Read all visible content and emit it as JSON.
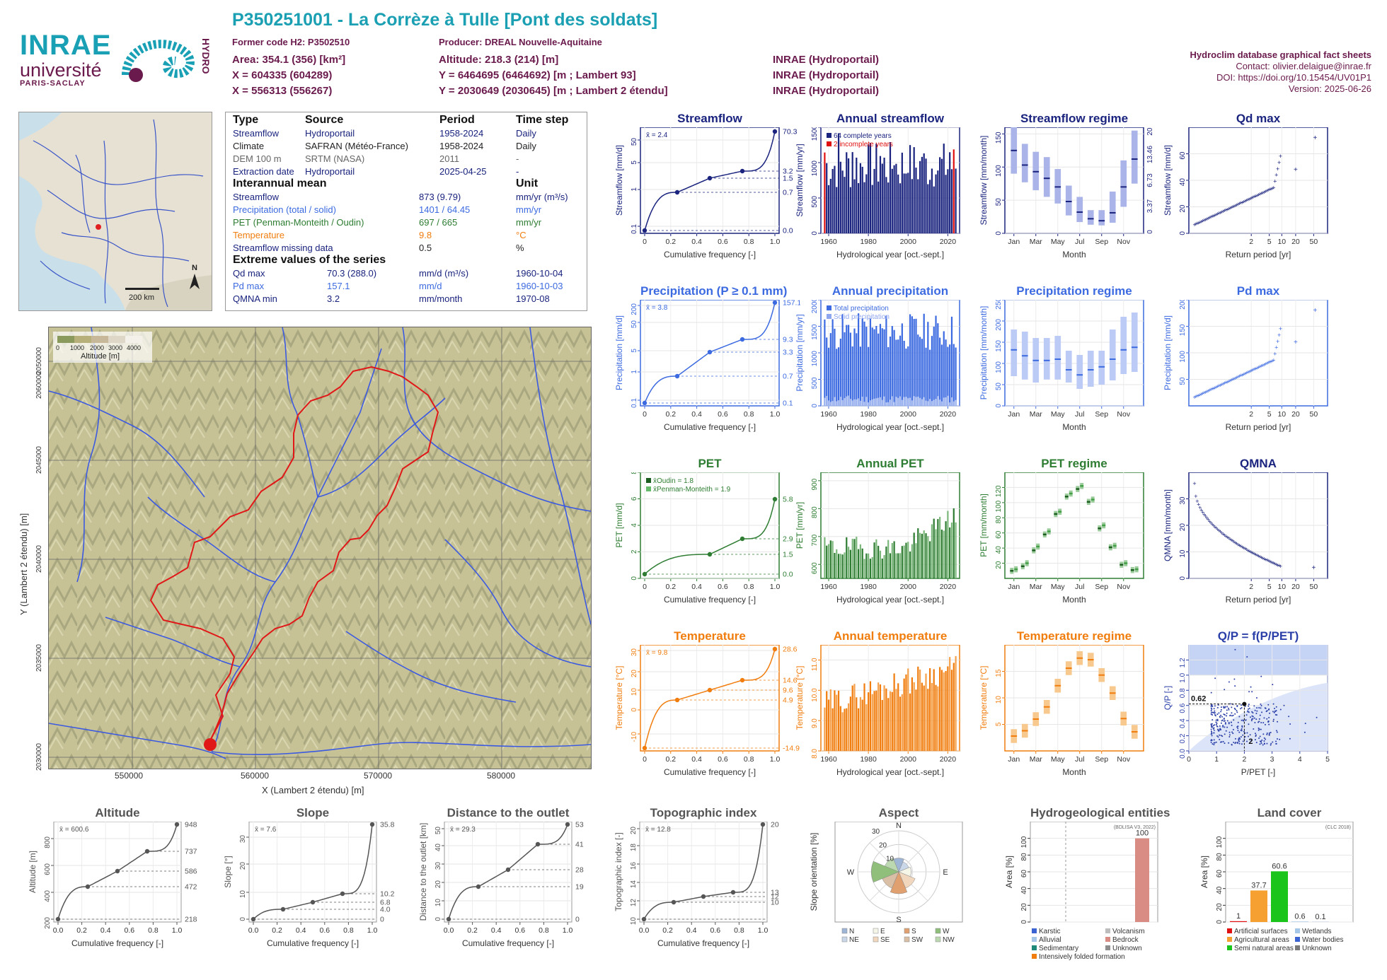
{
  "logos": {
    "inrae": "INRAE",
    "univ": "université",
    "ps": "PARIS-SACLAY",
    "hydro": "HYDRO"
  },
  "header": {
    "title": "P350251001 - La Corrèze à Tulle [Pont des soldats]",
    "former_code": "Former code H2: P3502510",
    "producer": "Producer: DREAL Nouvelle-Aquitaine",
    "area": "Area: 354.1 (356) [km²]",
    "x1": "X = 604335 (604289)",
    "x2": "X = 556313 (556267)",
    "altitude": "Altitude: 218.3 (214) [m]",
    "y1": "Y = 6464695 (6464692) [m ; Lambert 93]",
    "y2": "Y = 2030649 (2030645) [m ; Lambert 2 étendu]",
    "src1": "INRAE (Hydroportail)",
    "src2": "INRAE (Hydroportail)",
    "src3": "INRAE (Hydroportail)"
  },
  "credits": {
    "title": "Hydroclim database graphical fact sheets",
    "contact": "Contact: olivier.delaigue@inrae.fr",
    "doi": "DOI: https://doi.org/10.15454/UV01P1",
    "version": "Version: 2025-06-26"
  },
  "france_map": {
    "scale": "200 km",
    "north": "N"
  },
  "info": {
    "head": [
      "Type",
      "Source",
      "Period",
      "Time step"
    ],
    "rows": [
      [
        "Streamflow",
        "Hydroportail",
        "1958-2024",
        "Daily"
      ],
      [
        "Climate",
        "SAFRAN (Météo-France)",
        "1958-2024",
        "Daily"
      ],
      [
        "DEM 100 m",
        "SRTM (NASA)",
        "2011",
        "-"
      ],
      [
        "Extraction date",
        "Hydroportail",
        "2025-04-25",
        "-"
      ]
    ],
    "mean_head": "Interannual mean",
    "unit_head": "Unit",
    "mean_rows": [
      [
        "Streamflow",
        "873 (9.79)",
        "mm/yr (m³/s)"
      ],
      [
        "Precipitation (total / solid)",
        "1401 / 64.45",
        "mm/yr"
      ],
      [
        "PET (Penman-Monteith / Oudin)",
        "697 / 665",
        "mm/yr"
      ],
      [
        "Temperature",
        "9.8",
        "°C"
      ],
      [
        "Streamflow missing data",
        "0.5",
        "%"
      ]
    ],
    "ext_head": "Extreme values of the series",
    "ext_rows": [
      [
        "Qd max",
        "70.3 (288.0)",
        "mm/d (m³/s)",
        "1960-10-04"
      ],
      [
        "Pd max",
        "157.1",
        "mm/d",
        "1960-10-03"
      ],
      [
        "QMNA min",
        "3.2",
        "mm/month",
        "1970-08"
      ]
    ]
  },
  "basin_map": {
    "legend_title": "Altitude [m]",
    "legend_ticks": [
      "0",
      "1000",
      "2000",
      "3000",
      "4000"
    ],
    "x_ticks": [
      "550000",
      "560000",
      "570000",
      "580000"
    ],
    "y_ticks": [
      "2030000",
      "2035000",
      "2040000",
      "2045000",
      "2050000",
      "2055000",
      "2060000"
    ],
    "xlabel": "X (Lambert 2 étendu) [m]",
    "ylabel": "Y (Lambert 2 étendu) [m]"
  },
  "colors": {
    "flow": "#1a237e",
    "precip": "#3c6ae0",
    "pet": "#2e7d32",
    "temp": "#f07d0e",
    "qp": "#2b3fa8",
    "grey": "#555555"
  },
  "titles": {
    "streamflow": "Streamflow",
    "annual_streamflow": "Annual streamflow",
    "streamflow_regime": "Streamflow regime",
    "qd_max": "Qd  max",
    "precipitation": "Precipitation (P ≥ 0.1 mm)",
    "annual_precipitation": "Annual precipitation",
    "precipitation_regime": "Precipitation regime",
    "pd_max": "Pd  max",
    "pet": "PET",
    "annual_pet": "Annual PET",
    "pet_regime": "PET regime",
    "qmna": "QMNA",
    "temperature": "Temperature",
    "annual_temperature": "Annual temperature",
    "temperature_regime": "Temperature regime",
    "qp": "Q/P = f(P/PET)",
    "altitude": "Altitude",
    "slope": "Slope",
    "distance": "Distance to the outlet",
    "topo": "Topographic index",
    "aspect": "Aspect",
    "hydrogeo": "Hydrogeological entities",
    "landcover": "Land cover"
  },
  "axis_labels": {
    "cum_freq": "Cumulative frequency [-]",
    "hydro_year": "Hydrological year [oct.-sept.]",
    "month": "Month",
    "return_period": "Return period [yr]",
    "streamflow_mmd": "Streamflow [mm/d]",
    "streamflow_mmyr": "Streamflow [mm/yr]",
    "streamflow_mmmonth": "Streamflow [mm/month]",
    "precip_mmd": "Precipitation [mm/d]",
    "precip_mmyr": "Precipitation [mm/yr]",
    "precip_mmmonth": "Precipitation [mm/month]",
    "pet_mmd": "PET [mm/d]",
    "pet_mmyr": "PET [mm/yr]",
    "pet_mmmonth": "PET [mm/month]",
    "temp_c": "Temperature [°C]",
    "qmna_mmmonth": "QMNA [mm/month]",
    "qp": "Q/P [-]",
    "ppet": "P/PET [-]",
    "altitude_m": "Altitude [m]",
    "slope_deg": "Slope [°]",
    "distance_km": "Distance to the outlet [km]",
    "topo_idx": "Topographic index [-]",
    "slope_orient": "Slope orientation [%]",
    "area_pct": "Area [%]"
  },
  "chart_data": [
    {
      "id": "streamflow",
      "type": "line",
      "mean_label": "x̄ = 2.4",
      "x": [
        0,
        0.25,
        0.5,
        0.75,
        1
      ],
      "values": [
        0.04,
        0.7,
        1.5,
        3.2,
        70.3
      ],
      "right_ticks": [
        "70.3",
        "3.2",
        "1.5",
        "0.7",
        "0.0"
      ],
      "y_scale": "log",
      "y_ticks": [
        "0.1",
        "1",
        "5",
        "50"
      ],
      "x_ticks": [
        "0",
        "0.2",
        "0.4",
        "0.6",
        "0.8",
        "1.0"
      ]
    },
    {
      "id": "annual_streamflow",
      "type": "bar",
      "x_range": [
        1958,
        2024
      ],
      "ylim": [
        0,
        1500
      ],
      "y_ticks": [
        "0",
        "500",
        "1000",
        "1500"
      ],
      "x_ticks": [
        "1960",
        "1980",
        "2000",
        "2020"
      ],
      "legend": [
        "64 complete years",
        "2 incomplete years"
      ]
    },
    {
      "id": "streamflow_regime",
      "type": "box",
      "categories": [
        "Jan",
        "Feb",
        "Mar",
        "Apr",
        "May",
        "Jun",
        "Jul",
        "Aug",
        "Sep",
        "Oct",
        "Nov",
        "Dec"
      ],
      "median": [
        125,
        103,
        93,
        83,
        70,
        48,
        32,
        22,
        19,
        31,
        70,
        112
      ],
      "q10": [
        90,
        77,
        65,
        55,
        45,
        27,
        17,
        13,
        12,
        16,
        40,
        75
      ],
      "q90": [
        160,
        135,
        123,
        115,
        97,
        72,
        55,
        35,
        35,
        63,
        110,
        155
      ],
      "ylim": [
        0,
        160
      ],
      "y_ticks": [
        "0",
        "50",
        "100",
        "150"
      ],
      "right_ticks": [
        "0",
        "3.37",
        "6.73",
        "13.46",
        "20.2"
      ],
      "x_ticks": [
        "Jan",
        "Mar",
        "May",
        "Jul",
        "Sep",
        "Nov"
      ]
    },
    {
      "id": "qd_max",
      "type": "scatter",
      "y_ticks": [
        "0",
        "20",
        "40",
        "60"
      ],
      "x_ticks": [
        "2",
        "5",
        "10",
        "20",
        "50"
      ],
      "ylim": [
        0,
        80
      ],
      "max": 70.3
    },
    {
      "id": "precipitation",
      "type": "line",
      "mean_label": "x̄ = 3.8",
      "values": [
        0.1,
        0.7,
        3.3,
        9.3,
        157.1
      ],
      "right_ticks": [
        "157.1",
        "9.3",
        "3.3",
        "0.7",
        "0.1"
      ],
      "y_scale": "log",
      "y_ticks": [
        "0.1",
        "1",
        "5",
        "50",
        "200"
      ],
      "x_ticks": [
        "0",
        "0.2",
        "0.4",
        "0.6",
        "0.8",
        "1.0"
      ]
    },
    {
      "id": "annual_precipitation",
      "type": "bar",
      "x_range": [
        1958,
        2024
      ],
      "ylim": [
        0,
        2000
      ],
      "y_ticks": [
        "0",
        "500",
        "1000",
        "1500",
        "2000"
      ],
      "x_ticks": [
        "1960",
        "1980",
        "2000",
        "2020"
      ],
      "legend": [
        "Total precipitation",
        "Solid precipitation"
      ]
    },
    {
      "id": "precipitation_regime",
      "type": "box",
      "categories": [
        "Jan",
        "Feb",
        "Mar",
        "Apr",
        "May",
        "Jun",
        "Jul",
        "Aug",
        "Sep",
        "Oct",
        "Nov",
        "Dec"
      ],
      "median": [
        132,
        118,
        107,
        107,
        110,
        85,
        73,
        85,
        92,
        110,
        132,
        138
      ],
      "q10": [
        70,
        62,
        55,
        62,
        62,
        55,
        40,
        45,
        50,
        60,
        75,
        80
      ],
      "q90": [
        180,
        175,
        160,
        160,
        165,
        130,
        120,
        130,
        130,
        180,
        210,
        220
      ],
      "ylim": [
        0,
        250
      ],
      "y_ticks": [
        "0",
        "50",
        "100",
        "150",
        "200",
        "250"
      ],
      "x_ticks": [
        "Jan",
        "Mar",
        "May",
        "Jul",
        "Sep",
        "Nov"
      ]
    },
    {
      "id": "pd_max",
      "type": "scatter",
      "y_ticks": [
        "50",
        "100",
        "150",
        "200"
      ],
      "x_ticks": [
        "2",
        "5",
        "10",
        "20",
        "50"
      ],
      "ylim": [
        0,
        200
      ],
      "max": 157.1
    },
    {
      "id": "pet",
      "type": "line",
      "legend": [
        "x̄Oudin = 1.8",
        "x̄Penman-Monteith = 1.9"
      ],
      "values": [
        0.0,
        1.5,
        2.9,
        5.8
      ],
      "right_ticks": [
        "5.8",
        "2.9",
        "1.5",
        "0.0"
      ],
      "y_ticks": [
        "0",
        "2",
        "4",
        "6",
        "8"
      ],
      "ylim": [
        0,
        8
      ],
      "x_ticks": [
        "0",
        "0.2",
        "0.4",
        "0.6",
        "0.8",
        "1.0"
      ]
    },
    {
      "id": "annual_pet",
      "type": "bar",
      "x_range": [
        1958,
        2024
      ],
      "ylim": [
        550,
        930
      ],
      "y_ticks": [
        "600",
        "700",
        "800",
        "900"
      ],
      "x_ticks": [
        "1960",
        "1980",
        "2000",
        "2020"
      ]
    },
    {
      "id": "pet_regime",
      "type": "box",
      "categories": [
        "Jan",
        "Feb",
        "Mar",
        "Apr",
        "May",
        "Jun",
        "Jul",
        "Aug",
        "Sep",
        "Oct",
        "Nov",
        "Dec"
      ],
      "oudin": [
        10,
        16,
        37,
        58,
        85,
        108,
        118,
        101,
        66,
        41,
        18,
        11
      ],
      "pm": [
        12,
        20,
        42,
        62,
        88,
        112,
        122,
        104,
        70,
        43,
        20,
        12
      ],
      "ylim": [
        0,
        140
      ],
      "y_ticks": [
        "20",
        "40",
        "60",
        "80",
        "100",
        "120"
      ],
      "x_ticks": [
        "Jan",
        "Mar",
        "May",
        "Jul",
        "Sep",
        "Nov"
      ]
    },
    {
      "id": "qmna",
      "type": "scatter",
      "y_ticks": [
        "0",
        "10",
        "20",
        "30"
      ],
      "x_ticks": [
        "2",
        "5",
        "10",
        "20",
        "50"
      ],
      "ylim": [
        0,
        40
      ]
    },
    {
      "id": "temperature",
      "type": "line",
      "mean_label": "x̄ = 9.8",
      "values": [
        -14.9,
        4.9,
        9.6,
        14.6,
        28.6
      ],
      "right_ticks": [
        "28.6",
        "14.6",
        "9.6",
        "4.9",
        "-14.9"
      ],
      "y_ticks": [
        "-10",
        "0",
        "10",
        "20",
        "30"
      ],
      "ylim": [
        -16,
        30
      ],
      "x_ticks": [
        "0",
        "0.2",
        "0.4",
        "0.6",
        "0.8",
        "1.0"
      ]
    },
    {
      "id": "annual_temperature",
      "type": "bar",
      "x_range": [
        1958,
        2024
      ],
      "ylim": [
        8,
        11.5
      ],
      "y_ticks": [
        "8.0",
        "9.0",
        "10.0",
        "11.0"
      ],
      "x_ticks": [
        "1960",
        "1980",
        "2000",
        "2020"
      ]
    },
    {
      "id": "temperature_regime",
      "type": "box",
      "categories": [
        "Jan",
        "Feb",
        "Mar",
        "Apr",
        "May",
        "Jun",
        "Jul",
        "Aug",
        "Sep",
        "Oct",
        "Nov",
        "Dec"
      ],
      "median": [
        2.8,
        3.8,
        6.0,
        8.3,
        12.3,
        15.6,
        17.5,
        17.2,
        14.3,
        10.9,
        6.1,
        3.6
      ],
      "ylim": [
        0,
        20
      ],
      "y_ticks": [
        "5",
        "10",
        "15"
      ],
      "x_ticks": [
        "Jan",
        "Mar",
        "May",
        "Jul",
        "Sep",
        "Nov"
      ]
    },
    {
      "id": "qp",
      "type": "scatter",
      "point": {
        "x": 2,
        "y": 0.62
      },
      "point_labels": [
        "0.62",
        "2"
      ],
      "y_ticks": [
        "0.0",
        "0.2",
        "0.4",
        "0.6",
        "0.8",
        "1.0",
        "1.2"
      ],
      "x_ticks": [
        "0",
        "1",
        "2",
        "3",
        "4",
        "5"
      ],
      "ylim": [
        0,
        1.4
      ],
      "xlim": [
        0,
        5
      ]
    },
    {
      "id": "altitude",
      "type": "line",
      "mean_label": "x̄ = 600.6",
      "values": [
        218,
        472,
        586,
        737,
        948
      ],
      "right_ticks": [
        "948",
        "737",
        "586",
        "472",
        "218"
      ],
      "y_ticks": [
        "200",
        "400",
        "600",
        "800"
      ],
      "ylim": [
        200,
        960
      ],
      "x_ticks": [
        "0.0",
        "0.2",
        "0.4",
        "0.6",
        "0.8",
        "1.0"
      ]
    },
    {
      "id": "slope",
      "type": "line",
      "mean_label": "x̄ = 7.6",
      "values": [
        0,
        4.0,
        6.8,
        10.2,
        35.8
      ],
      "right_ticks": [
        "35.8",
        "10.2",
        "6.8",
        "4.0",
        "0"
      ],
      "y_ticks": [
        "0",
        "10",
        "20",
        "30"
      ],
      "ylim": [
        0,
        37
      ],
      "x_ticks": [
        "0.0",
        "0.2",
        "0.4",
        "0.6",
        "0.8",
        "1.0"
      ]
    },
    {
      "id": "distance",
      "type": "line",
      "mean_label": "x̄ = 29.3",
      "values": [
        0,
        19,
        28,
        41,
        53
      ],
      "right_ticks": [
        "53",
        "41",
        "28",
        "19",
        "0"
      ],
      "y_ticks": [
        "0",
        "10",
        "20",
        "30",
        "40",
        "50"
      ],
      "ylim": [
        0,
        55
      ],
      "x_ticks": [
        "0.0",
        "0.2",
        "0.4",
        "0.6",
        "0.8",
        "1.0"
      ]
    },
    {
      "id": "topo",
      "type": "line",
      "mean_label": "x̄ = 12.8",
      "values": [
        10,
        12,
        12.6,
        13,
        20
      ],
      "right_ticks": [
        "20",
        "13",
        "12",
        "10"
      ],
      "y_ticks": [
        "10",
        "12",
        "14",
        "16",
        "18",
        "20"
      ],
      "ylim": [
        10,
        20.5
      ],
      "x_ticks": [
        "0.0",
        "0.2",
        "0.4",
        "0.6",
        "0.8",
        "1.0"
      ]
    },
    {
      "id": "aspect",
      "type": "pie",
      "directions": [
        "N",
        "NE",
        "E",
        "SE",
        "S",
        "SW",
        "W",
        "NW"
      ],
      "values": [
        10,
        8,
        9,
        13,
        16,
        13,
        20,
        11
      ],
      "rings": [
        "10",
        "20",
        "30"
      ]
    },
    {
      "id": "hydrogeo",
      "type": "bar",
      "categories": [
        "Bedrock"
      ],
      "values": [
        100
      ],
      "labels": [
        "100"
      ],
      "note": "(BDLISA V3, 2022)",
      "y_ticks": [
        "0",
        "20",
        "40",
        "60",
        "80",
        "100"
      ],
      "legend": [
        "Karstic",
        "Volcanism",
        "Alluvial",
        "Bedrock",
        "Sedimentary",
        "Unknown",
        "Intensively folded formation"
      ]
    },
    {
      "id": "landcover",
      "type": "bar",
      "categories": [
        "Artificial surfaces",
        "Agricultural areas",
        "Semi natural areas",
        "Wetlands",
        "Water bodies",
        "Unknown"
      ],
      "values": [
        1,
        37.7,
        60.6,
        0.6,
        0.1,
        0
      ],
      "labels": [
        "1",
        "37.7",
        "60.6",
        "0.6",
        "0.1",
        ""
      ],
      "note": "(CLC 2018)",
      "y_ticks": [
        "0",
        "20",
        "40",
        "60",
        "80",
        "100"
      ],
      "legend": [
        "Artificial surfaces",
        "Wetlands",
        "Agricultural areas",
        "Water bodies",
        "Semi natural areas",
        "Unknown"
      ]
    }
  ]
}
